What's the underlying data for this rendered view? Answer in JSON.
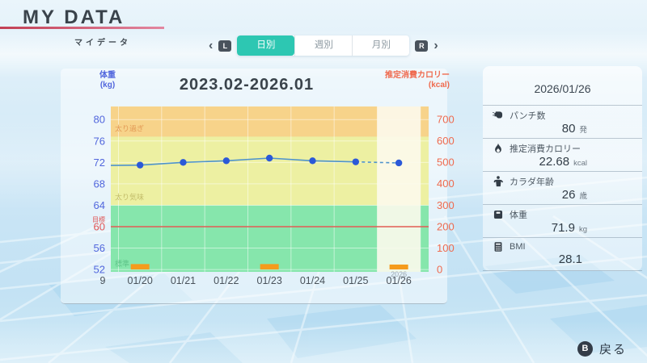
{
  "header": {
    "title": "MY DATA",
    "subtitle": "マイデータ"
  },
  "tabs": {
    "prev_arrow": "‹",
    "next_arrow": "›",
    "l_button": "L",
    "r_button": "R",
    "items": [
      {
        "label": "日別",
        "selected": true
      },
      {
        "label": "週別",
        "selected": false
      },
      {
        "label": "月別",
        "selected": false
      }
    ]
  },
  "chart_data": {
    "type": "line",
    "title": "2023.02-2026.01",
    "left_axis": {
      "label": "体重",
      "unit": "(kg)",
      "ticks": [
        80,
        76,
        72,
        68,
        64,
        60,
        56,
        52
      ],
      "min": 51.4,
      "max": 82.4,
      "target_value": 60,
      "target_label": "目標"
    },
    "right_axis": {
      "label": "推定消費カロリー",
      "unit": "(kcal)",
      "ticks": [
        700,
        600,
        500,
        400,
        300,
        200,
        100,
        0
      ],
      "min": 0,
      "max": 770
    },
    "zones": [
      {
        "label": "太り過ぎ",
        "from": 76.8,
        "to": 83,
        "color": "#f7d38a",
        "label_color": "#e39a55"
      },
      {
        "label": "太り気味",
        "from": 64,
        "to": 76.8,
        "color": "#edf0a2",
        "label_color": "#c3bd6a"
      },
      {
        "label": "標準",
        "from": 51,
        "to": 64,
        "color": "#86e6ac",
        "label_color": "#5fc489"
      }
    ],
    "categories": [
      "01/20",
      "01/21",
      "01/22",
      "01/23",
      "01/24",
      "01/25",
      "01/26"
    ],
    "partial_left_label": "9",
    "year_label": "2026",
    "highlight_category": "01/26",
    "weight_series": {
      "name": "体重",
      "values": [
        71.5,
        72.0,
        72.3,
        72.8,
        72.3,
        72.1,
        71.9
      ],
      "enter_value": 71.4,
      "dashed_last_segment": true
    },
    "kcal_bars": {
      "name": "推定消費カロリー",
      "values": [
        25,
        null,
        null,
        25,
        null,
        null,
        22.68
      ]
    },
    "style": {
      "line": "#4e93cc",
      "point": "#2b59d8",
      "bar": "#f59b1c",
      "target": "#e25c54",
      "target_text": "#e05555",
      "grid": "#ffffff",
      "highlight": "#fcf9ec",
      "left_tick": "#5166dd",
      "right_tick": "#ef6a4e",
      "xlabel": "#49525a",
      "year": "#9aa6ae"
    }
  },
  "detail_panel": {
    "date": "2026/01/26",
    "stats": [
      {
        "icon": "boxing-glove-icon",
        "label": "パンチ数",
        "value": "80",
        "unit": "発"
      },
      {
        "icon": "flame-icon",
        "label": "推定消費カロリー",
        "value": "22.68",
        "unit": "kcal"
      },
      {
        "icon": "body-age-icon",
        "label": "カラダ年齢",
        "value": "26",
        "unit": "歳"
      },
      {
        "icon": "weight-scale-icon",
        "label": "体重",
        "value": "71.9",
        "unit": "kg"
      },
      {
        "icon": "bmi-calculator-icon",
        "label": "BMI",
        "value": "28.1",
        "unit": ""
      }
    ]
  },
  "footer": {
    "button": "B",
    "label": "戻る"
  },
  "colors": {
    "accent_teal": "#2dc7b2",
    "logo_underline": "#d8536a",
    "sky_blue": "#cde7f5",
    "floor_blue": "#bfdff2"
  }
}
